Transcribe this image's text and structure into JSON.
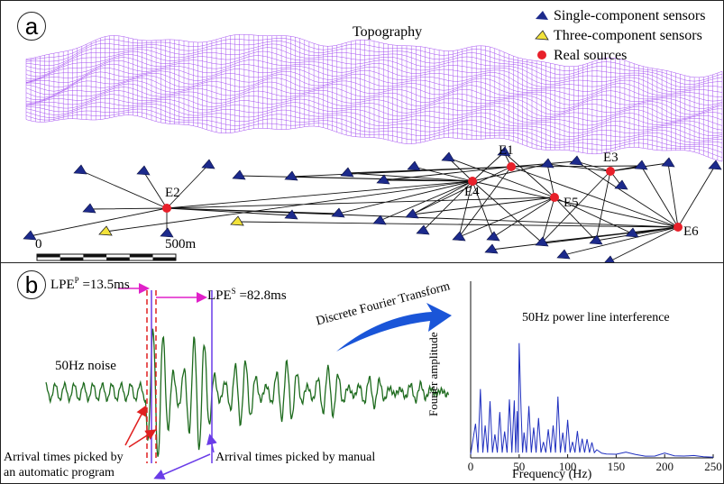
{
  "panel_a": {
    "tag": "a",
    "topography_label": "Topography",
    "legend": {
      "single": "Single-component sensors",
      "three": "Three-component sensors",
      "sources": "Real sources"
    },
    "colors": {
      "mesh": "#9a3cf0",
      "single_sensor": "#1c2a8c",
      "three_sensor": "#f2e23a",
      "source": "#e8202a",
      "ray": "#111111"
    },
    "sources": [
      {
        "id": "E1",
        "label": "E1"
      },
      {
        "id": "E2",
        "label": "E2"
      },
      {
        "id": "E3",
        "label": "E3"
      },
      {
        "id": "E4",
        "label": "E4"
      },
      {
        "id": "E5",
        "label": "E5"
      },
      {
        "id": "E6",
        "label": "E6"
      }
    ],
    "scalebar": {
      "start": "0",
      "end": "500m"
    }
  },
  "panel_b": {
    "tag": "b",
    "lpe_p": {
      "name": "LPE",
      "sup": "P",
      "value": " =13.5ms"
    },
    "lpe_s": {
      "name": "LPE",
      "sup": "S",
      "value": " =82.8ms"
    },
    "noise_label": "50Hz noise",
    "dft_label": "Discrete Fourier Transform",
    "auto_label_1": "Arrival times picked by",
    "auto_label_2": "an automatic program",
    "manual_label": "Arrival times picked by manual",
    "colors": {
      "waveform": "#1e6b1e",
      "spectrum": "#1f2fbf",
      "auto_line": "#e02020",
      "manual_line": "#6a3ce8",
      "lpe_arrow": "#e020c8",
      "dft_arrow": "#1a55d8"
    }
  },
  "chart_data": {
    "type": "line",
    "title": "50Hz power line interference",
    "xlabel": "Frequency (Hz)",
    "ylabel": "Fourier  amplitude",
    "xlim": [
      0,
      250
    ],
    "xticks": [
      "0",
      "50",
      "100",
      "150",
      "200",
      "250"
    ],
    "x": [
      0,
      5,
      10,
      15,
      20,
      25,
      30,
      35,
      40,
      45,
      48,
      50,
      52,
      55,
      60,
      65,
      70,
      75,
      80,
      85,
      90,
      95,
      100,
      105,
      110,
      115,
      120,
      125,
      130,
      135,
      140,
      150,
      160,
      170,
      180,
      190,
      200,
      210,
      220,
      230,
      240,
      250
    ],
    "y": [
      0.02,
      0.15,
      0.3,
      0.18,
      0.45,
      0.2,
      0.28,
      0.12,
      0.25,
      0.3,
      0.35,
      1.0,
      0.3,
      0.12,
      0.22,
      0.15,
      0.28,
      0.14,
      0.2,
      0.16,
      0.26,
      0.12,
      0.25,
      0.14,
      0.2,
      0.1,
      0.08,
      0.07,
      0.05,
      0.04,
      0.03,
      0.02,
      0.025,
      0.015,
      0.01,
      0.015,
      0.04,
      0.012,
      0.008,
      0.01,
      0.006,
      0.005
    ]
  }
}
